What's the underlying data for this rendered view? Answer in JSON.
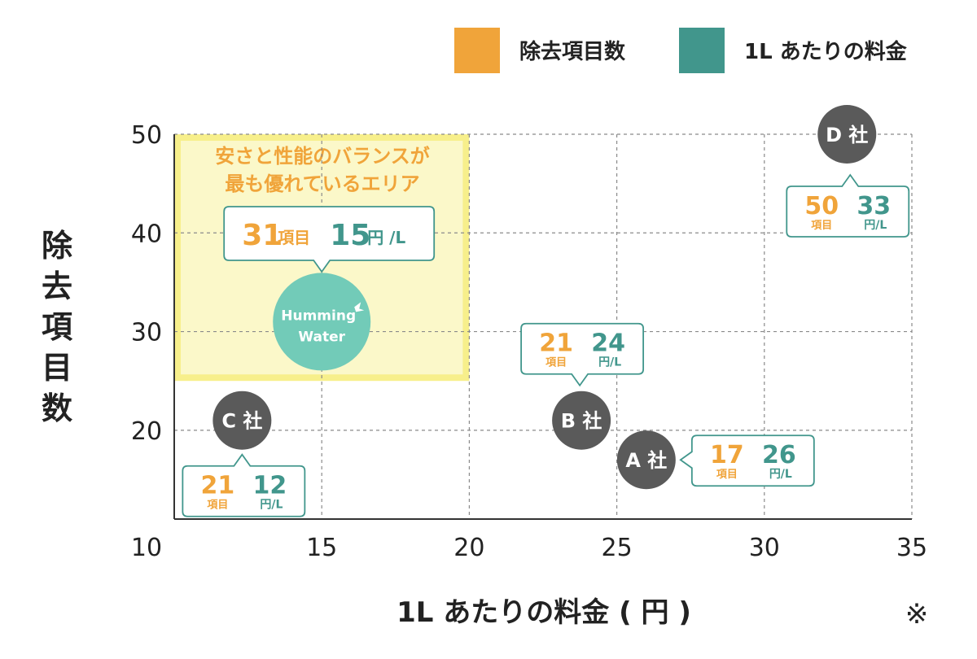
{
  "chart_data": {
    "type": "scatter",
    "title": "",
    "xlabel": "1L あたりの料金 ( 円 )",
    "ylabel": "除去項目数",
    "xlim": [
      10,
      35
    ],
    "ylim": [
      11,
      50
    ],
    "x_ticks": [
      10,
      15,
      20,
      25,
      30,
      35
    ],
    "y_ticks": [
      20,
      30,
      40,
      50
    ],
    "grid": true,
    "legend": {
      "placement": "top-right",
      "items": [
        {
          "label": "除去項目数",
          "color": "#f0a43a"
        },
        {
          "label": "1L あたりの料金",
          "color": "#41968c"
        }
      ]
    },
    "highlight_region": {
      "label_line1": "安さと性能のバランスが",
      "label_line2": "最も優れているエリア",
      "x": [
        10,
        20
      ],
      "y": [
        25,
        50
      ]
    },
    "points": [
      {
        "name": "Humming Water",
        "logo_line1": "Humming",
        "logo_line2": "Water",
        "x": 15,
        "y": 31,
        "items_value": "31",
        "items_unit": "項目",
        "price_value": "15",
        "price_unit": "円 /L"
      },
      {
        "name": "A 社",
        "x": 26,
        "y": 17,
        "items_value": "17",
        "items_unit": "項目",
        "price_value": "26",
        "price_unit": "円/L"
      },
      {
        "name": "B 社",
        "x": 23.8,
        "y": 21,
        "items_value": "21",
        "items_unit": "項目",
        "price_value": "24",
        "price_unit": "円/L"
      },
      {
        "name": "C 社",
        "x": 12.3,
        "y": 21,
        "items_value": "21",
        "items_unit": "項目",
        "price_value": "12",
        "price_unit": "円/L"
      },
      {
        "name": "D 社",
        "x": 32.8,
        "y": 50,
        "items_value": "50",
        "items_unit": "項目",
        "price_value": "33",
        "price_unit": "円/L"
      }
    ],
    "footnote": "※"
  },
  "colors": {
    "orange": "#f0a43a",
    "teal": "#41968c",
    "teal_circle": "#72cbb8",
    "company_circle": "#5a5a5a",
    "highlight_fill": "#fbf8c9",
    "highlight_border": "#f7ef8b",
    "grid": "#8a8a8a"
  }
}
